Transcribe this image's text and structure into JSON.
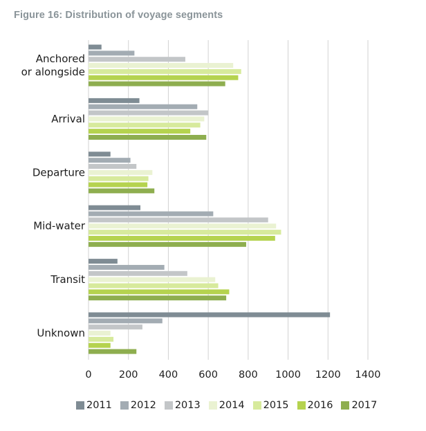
{
  "title": "Figure 16: Distribution of voyage segments",
  "chart_data": {
    "type": "bar",
    "orientation": "horizontal",
    "title": "Figure 16: Distribution of voyage segments",
    "xlabel": "",
    "ylabel": "",
    "xlim": [
      0,
      1400
    ],
    "xticks": [
      0,
      200,
      400,
      600,
      800,
      1000,
      1200,
      1400
    ],
    "grid": true,
    "legend_position": "bottom",
    "categories": [
      "Anchored\nor alongside",
      "Arrival",
      "Departure",
      "Mid-water",
      "Transit",
      "Unknown"
    ],
    "series": [
      {
        "name": "2011",
        "color": "#7f8c94",
        "values": [
          65,
          255,
          110,
          260,
          145,
          1210
        ]
      },
      {
        "name": "2012",
        "color": "#a3acb3",
        "values": [
          230,
          545,
          210,
          625,
          380,
          370
        ]
      },
      {
        "name": "2013",
        "color": "#c3c6c8",
        "values": [
          485,
          600,
          240,
          900,
          495,
          270
        ]
      },
      {
        "name": "2014",
        "color": "#eaf2d2",
        "values": [
          725,
          580,
          320,
          940,
          635,
          110
        ]
      },
      {
        "name": "2015",
        "color": "#d7ea9c",
        "values": [
          765,
          560,
          300,
          965,
          650,
          125
        ]
      },
      {
        "name": "2016",
        "color": "#b5d34f",
        "values": [
          750,
          510,
          295,
          935,
          705,
          110
        ]
      },
      {
        "name": "2017",
        "color": "#8eae4f",
        "values": [
          685,
          590,
          330,
          790,
          690,
          240
        ]
      }
    ]
  }
}
